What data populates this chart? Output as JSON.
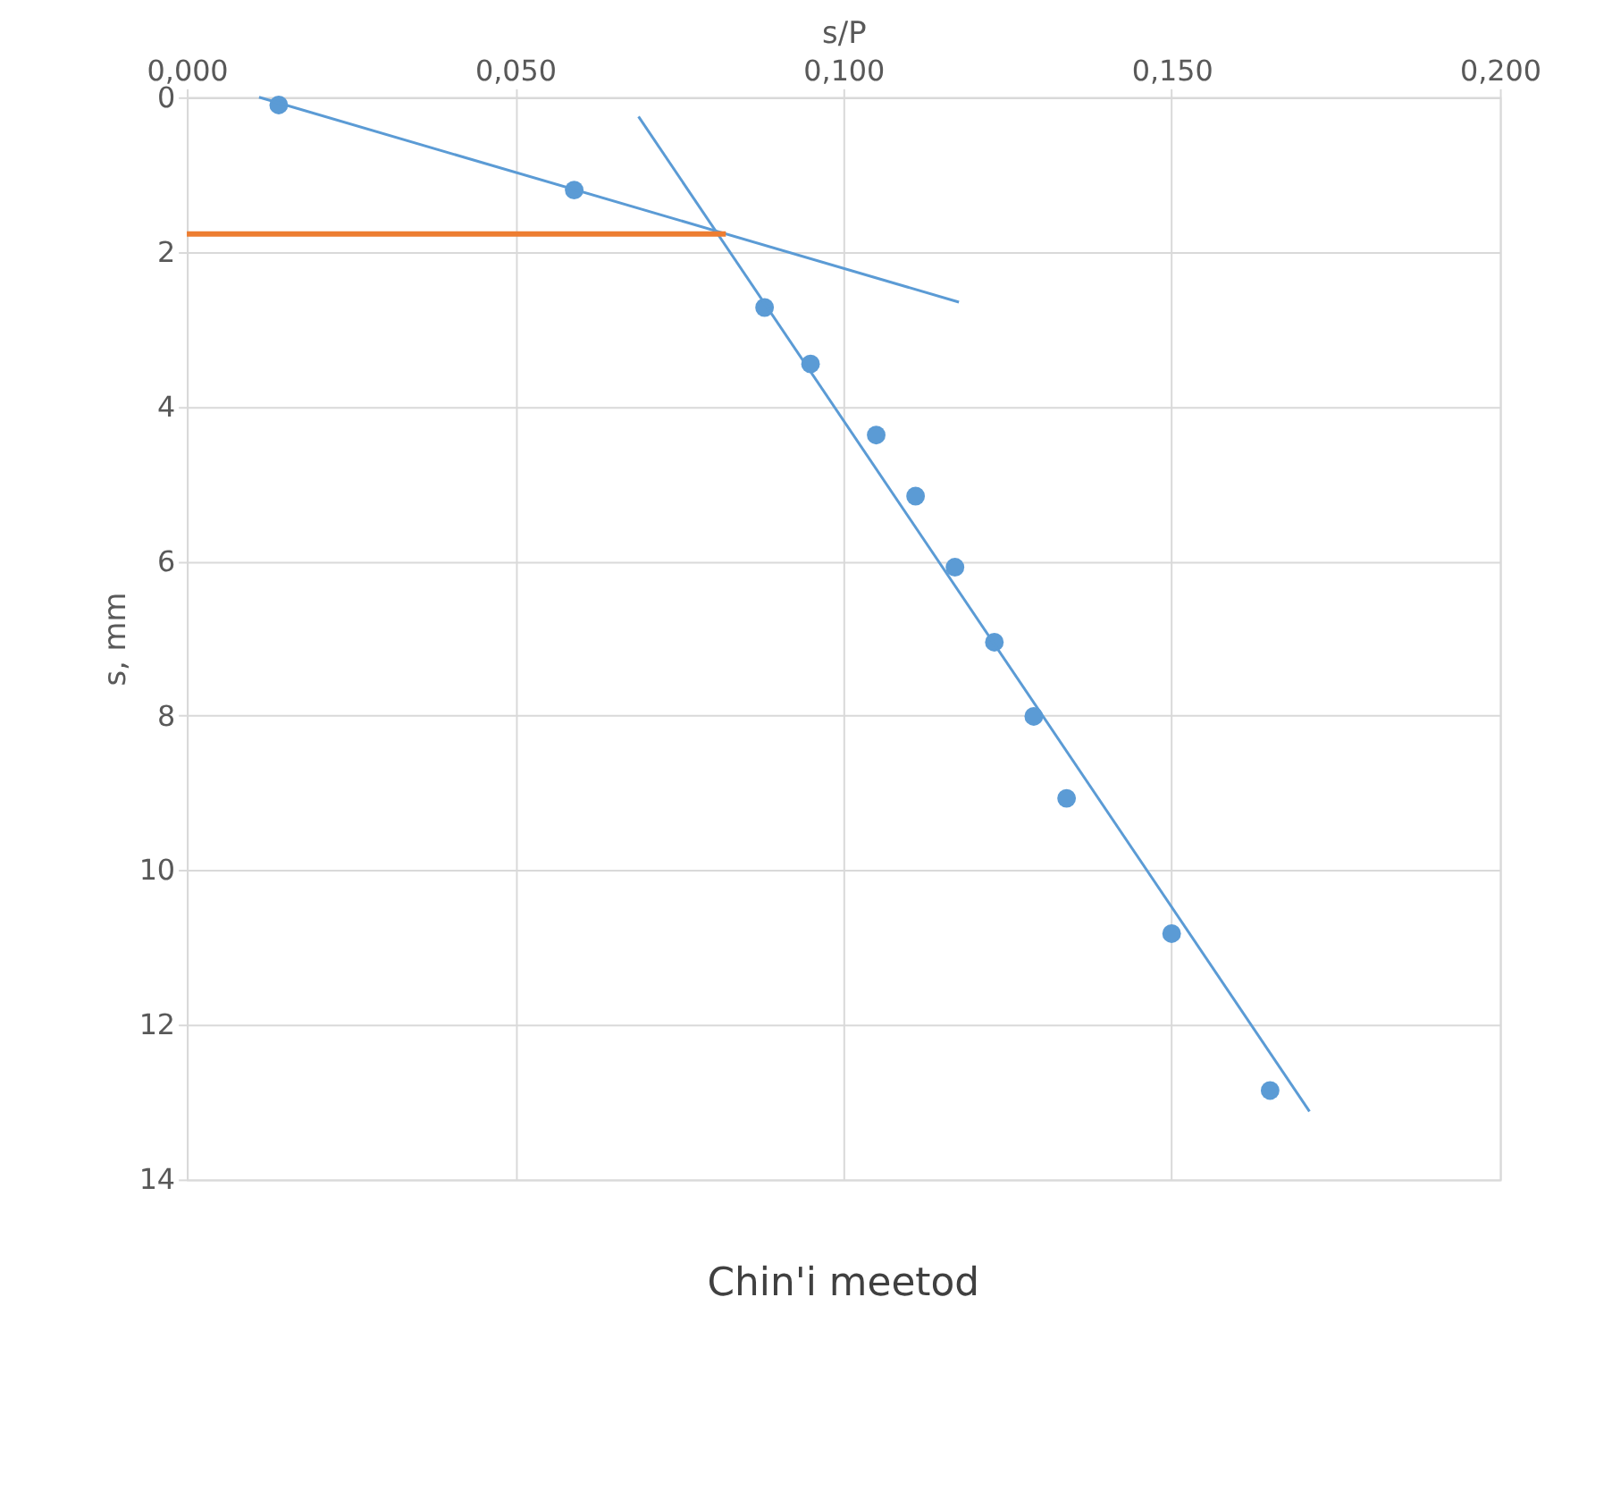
{
  "chart_data": {
    "type": "scatter",
    "title": "Chin'i meetod",
    "xlabel": "s/P",
    "ylabel": "s, mm",
    "xlim": [
      0,
      0.2
    ],
    "xticks": [
      {
        "value": 0,
        "label": "0,000"
      },
      {
        "value": 0.05,
        "label": "0,050"
      },
      {
        "value": 0.1,
        "label": "0,100"
      },
      {
        "value": 0.15,
        "label": "0,150"
      },
      {
        "value": 0.2,
        "label": "0,200"
      }
    ],
    "ylim": [
      14,
      0
    ],
    "yticks": [
      0,
      2,
      4,
      6,
      8,
      10,
      12,
      14
    ],
    "grid": true,
    "series": [
      {
        "marker": "circle",
        "color": "#5b9bd5",
        "x": [
          0.014,
          0.059,
          0.088,
          0.095,
          0.105,
          0.111,
          0.117,
          0.123,
          0.129,
          0.134,
          0.15,
          0.165
        ],
        "values": [
          0.1,
          1.2,
          2.72,
          3.45,
          4.37,
          5.16,
          6.08,
          7.05,
          8.01,
          9.07,
          10.82,
          12.85
        ]
      },
      {
        "type": "line",
        "marker": "none",
        "color": "#5b9bd5",
        "x": [
          0.011,
          0.1176
        ],
        "values": [
          0,
          2.65
        ]
      },
      {
        "type": "line",
        "marker": "none",
        "color": "#5b9bd5",
        "x": [
          0.0688,
          0.171
        ],
        "values": [
          0.25,
          13.12
        ]
      },
      {
        "type": "line",
        "marker": "none",
        "color": "#ed7d31",
        "x": [
          0,
          0.0821
        ],
        "values": [
          1.77,
          1.77
        ]
      }
    ]
  }
}
